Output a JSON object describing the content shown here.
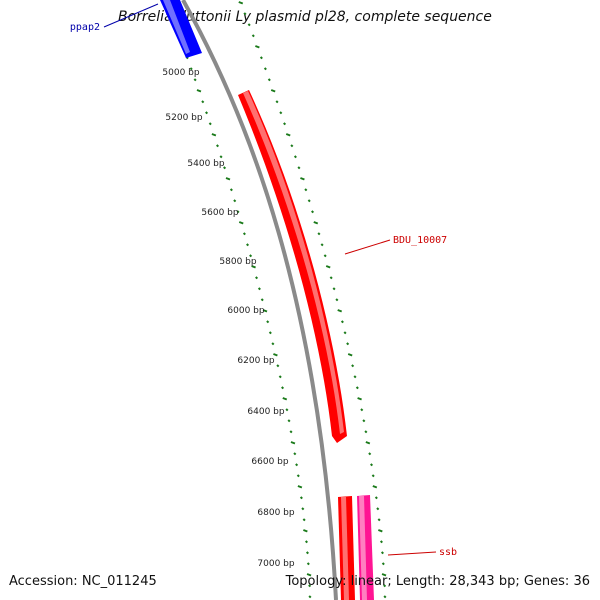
{
  "title": "Borrelia duttonii Ly plasmid pl28, complete sequence",
  "footer": {
    "accession": "Accession: NC_011245",
    "summary": "Topology: linear; Length: 28,343 bp; Genes: 36"
  },
  "colors": {
    "backbone": "#8a8a8a",
    "ticks": "#1a7a1a",
    "gene_red": "#ff0000",
    "gene_blue": "#0000ff",
    "gene_pink": "#ff1493"
  },
  "ticks": [
    {
      "bp": 5000,
      "label": "5000 bp"
    },
    {
      "bp": 5200,
      "label": "5200 bp"
    },
    {
      "bp": 5400,
      "label": "5400 bp"
    },
    {
      "bp": 5600,
      "label": "5600 bp"
    },
    {
      "bp": 5800,
      "label": "5800 bp"
    },
    {
      "bp": 6000,
      "label": "6000 bp"
    },
    {
      "bp": 6200,
      "label": "6200 bp"
    },
    {
      "bp": 6400,
      "label": "6400 bp"
    },
    {
      "bp": 6600,
      "label": "6600 bp"
    },
    {
      "bp": 6800,
      "label": "6800 bp"
    },
    {
      "bp": 7000,
      "label": "7000 bp"
    }
  ],
  "genes": [
    {
      "name": "ppap2",
      "color": "blue"
    },
    {
      "name": "BDU_10007",
      "color": "red"
    },
    {
      "name": "ssb",
      "color": "red"
    }
  ]
}
